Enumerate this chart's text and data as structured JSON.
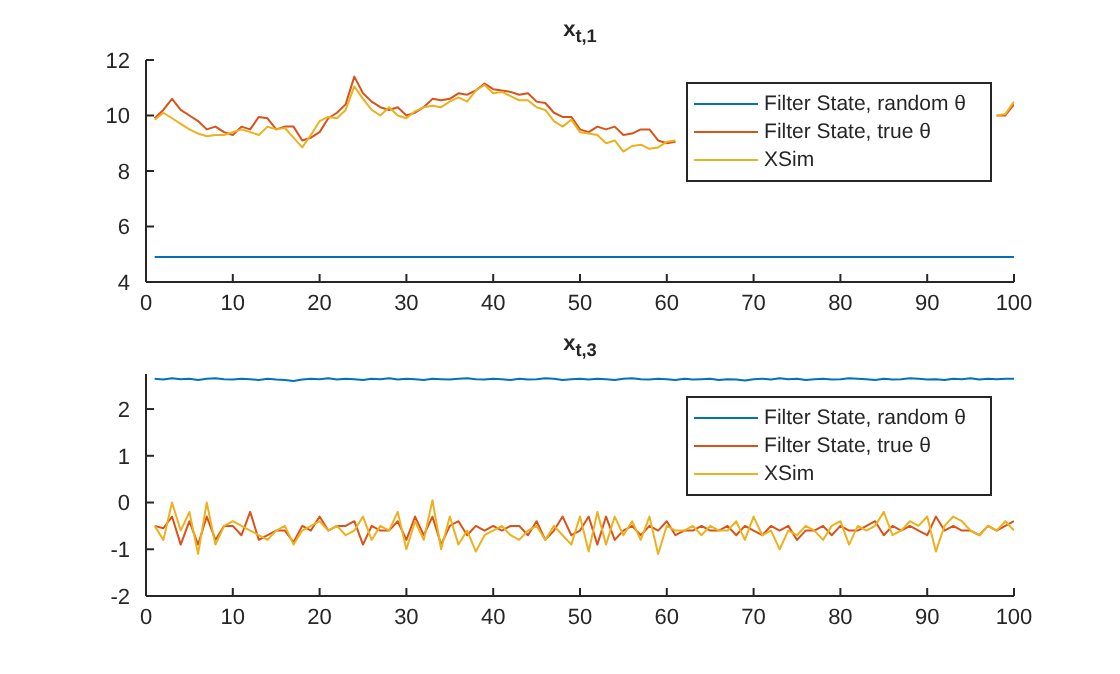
{
  "chart_data": [
    {
      "type": "line",
      "title": "x$_{t,1}$",
      "x": [
        1,
        2,
        3,
        4,
        5,
        6,
        7,
        8,
        9,
        10,
        11,
        12,
        13,
        14,
        15,
        16,
        17,
        18,
        19,
        20,
        21,
        22,
        23,
        24,
        25,
        26,
        27,
        28,
        29,
        30,
        31,
        32,
        33,
        34,
        35,
        36,
        37,
        38,
        39,
        40,
        41,
        42,
        43,
        44,
        45,
        46,
        47,
        48,
        49,
        50,
        51,
        52,
        53,
        54,
        55,
        56,
        57,
        58,
        59,
        60,
        61,
        62,
        63,
        64,
        65,
        66,
        67,
        68,
        69,
        70,
        71,
        72,
        73,
        74,
        75,
        76,
        77,
        78,
        79,
        80,
        81,
        82,
        83,
        84,
        85,
        86,
        87,
        88,
        89,
        90,
        91,
        92,
        93,
        94,
        95,
        96,
        97,
        98,
        99,
        100
      ],
      "xlim": [
        0,
        100
      ],
      "xticks": [
        0,
        10,
        20,
        30,
        40,
        50,
        60,
        70,
        80,
        90,
        100
      ],
      "ylim": [
        4,
        12
      ],
      "yticks": [
        4,
        6,
        8,
        10,
        12
      ],
      "legend": "top right",
      "grid": false,
      "series": [
        {
          "name": "Filter State, random θ",
          "color": "#0072bd",
          "values": [
            4.9,
            4.9,
            4.9,
            4.9,
            4.9,
            4.9,
            4.9,
            4.9,
            4.9,
            4.9,
            4.9,
            4.9,
            4.9,
            4.9,
            4.9,
            4.9,
            4.9,
            4.9,
            4.9,
            4.9,
            4.9,
            4.9,
            4.9,
            4.9,
            4.9,
            4.9,
            4.9,
            4.9,
            4.9,
            4.9,
            4.9,
            4.9,
            4.9,
            4.9,
            4.9,
            4.9,
            4.9,
            4.9,
            4.9,
            4.9,
            4.9,
            4.9,
            4.9,
            4.9,
            4.9,
            4.9,
            4.9,
            4.9,
            4.9,
            4.9,
            4.9,
            4.9,
            4.9,
            4.9,
            4.9,
            4.9,
            4.9,
            4.9,
            4.9,
            4.9,
            4.9,
            4.9,
            4.9,
            4.9,
            4.9,
            4.9,
            4.9,
            4.9,
            4.9,
            4.9,
            4.9,
            4.9,
            4.9,
            4.9,
            4.9,
            4.9,
            4.9,
            4.9,
            4.9,
            4.9,
            4.9,
            4.9,
            4.9,
            4.9,
            4.9,
            4.9,
            4.9,
            4.9,
            4.9,
            4.9,
            4.9,
            4.9,
            4.9,
            4.9,
            4.9,
            4.9,
            4.9,
            4.9,
            4.9,
            4.9
          ]
        },
        {
          "name": "Filter State, true θ",
          "color": "#d95319",
          "values": [
            9.9,
            10.2,
            10.6,
            10.2,
            10.0,
            9.8,
            9.5,
            9.6,
            9.4,
            9.3,
            9.6,
            9.5,
            9.95,
            9.9,
            9.5,
            9.6,
            9.6,
            9.1,
            9.2,
            9.4,
            9.9,
            10.1,
            10.4,
            11.4,
            10.8,
            10.5,
            10.3,
            10.2,
            10.3,
            10.0,
            10.1,
            10.3,
            10.6,
            10.55,
            10.6,
            10.8,
            10.75,
            10.9,
            11.15,
            10.95,
            10.9,
            10.85,
            10.75,
            10.8,
            10.5,
            10.45,
            10.1,
            9.95,
            9.95,
            9.5,
            9.4,
            9.6,
            9.5,
            9.6,
            9.3,
            9.35,
            9.5,
            9.5,
            9.1,
            9.0,
            9.05,
            null,
            null,
            null,
            null,
            null,
            null,
            null,
            null,
            null,
            null,
            null,
            null,
            null,
            null,
            null,
            null,
            null,
            null,
            null,
            null,
            null,
            null,
            null,
            null,
            null,
            null,
            null,
            null,
            null,
            null,
            null,
            null,
            null,
            null,
            null,
            null,
            10.0,
            10.0,
            10.4
          ]
        },
        {
          "name": "XSim",
          "color": "#edb120",
          "values": [
            9.85,
            10.1,
            9.9,
            9.7,
            9.5,
            9.35,
            9.25,
            9.3,
            9.3,
            9.4,
            9.5,
            9.4,
            9.3,
            9.6,
            9.5,
            9.55,
            9.2,
            8.85,
            9.3,
            9.8,
            9.95,
            9.9,
            10.2,
            11.05,
            10.6,
            10.2,
            10.0,
            10.3,
            10.0,
            9.9,
            10.15,
            10.3,
            10.35,
            10.3,
            10.5,
            10.65,
            10.5,
            10.9,
            11.1,
            10.8,
            10.85,
            10.7,
            10.55,
            10.55,
            10.3,
            10.2,
            9.8,
            9.6,
            9.85,
            9.4,
            9.35,
            9.3,
            9.0,
            9.1,
            8.7,
            8.9,
            8.95,
            8.8,
            8.85,
            9.05,
            9.1,
            null,
            null,
            null,
            null,
            null,
            null,
            null,
            null,
            null,
            null,
            null,
            null,
            null,
            null,
            null,
            null,
            null,
            null,
            null,
            null,
            null,
            null,
            null,
            null,
            null,
            null,
            null,
            null,
            null,
            null,
            null,
            null,
            null,
            null,
            null,
            null,
            10.0,
            10.05,
            10.5
          ]
        }
      ]
    },
    {
      "type": "line",
      "title": "x$_{t,3}$",
      "x": [
        1,
        2,
        3,
        4,
        5,
        6,
        7,
        8,
        9,
        10,
        11,
        12,
        13,
        14,
        15,
        16,
        17,
        18,
        19,
        20,
        21,
        22,
        23,
        24,
        25,
        26,
        27,
        28,
        29,
        30,
        31,
        32,
        33,
        34,
        35,
        36,
        37,
        38,
        39,
        40,
        41,
        42,
        43,
        44,
        45,
        46,
        47,
        48,
        49,
        50,
        51,
        52,
        53,
        54,
        55,
        56,
        57,
        58,
        59,
        60,
        61,
        62,
        63,
        64,
        65,
        66,
        67,
        68,
        69,
        70,
        71,
        72,
        73,
        74,
        75,
        76,
        77,
        78,
        79,
        80,
        81,
        82,
        83,
        84,
        85,
        86,
        87,
        88,
        89,
        90,
        91,
        92,
        93,
        94,
        95,
        96,
        97,
        98,
        99,
        100
      ],
      "xlim": [
        0,
        100
      ],
      "xticks": [
        0,
        10,
        20,
        30,
        40,
        50,
        60,
        70,
        80,
        90,
        100
      ],
      "ylim": [
        -2,
        2.75
      ],
      "yticks": [
        -2,
        -1,
        0,
        1,
        2
      ],
      "legend": "top right",
      "grid": false,
      "series": [
        {
          "name": "Filter State, random θ",
          "color": "#0072bd",
          "values": [
            2.65,
            2.63,
            2.66,
            2.64,
            2.65,
            2.62,
            2.65,
            2.66,
            2.64,
            2.63,
            2.65,
            2.64,
            2.62,
            2.65,
            2.63,
            2.62,
            2.6,
            2.63,
            2.65,
            2.64,
            2.66,
            2.63,
            2.65,
            2.64,
            2.62,
            2.65,
            2.64,
            2.66,
            2.63,
            2.65,
            2.64,
            2.62,
            2.65,
            2.64,
            2.63,
            2.65,
            2.66,
            2.64,
            2.63,
            2.65,
            2.64,
            2.62,
            2.65,
            2.63,
            2.64,
            2.66,
            2.65,
            2.62,
            2.64,
            2.65,
            2.63,
            2.65,
            2.64,
            2.62,
            2.65,
            2.66,
            2.64,
            2.63,
            2.65,
            2.64,
            2.62,
            2.65,
            2.63,
            2.64,
            2.65,
            2.62,
            2.64,
            2.63,
            2.61,
            2.64,
            2.65,
            2.63,
            2.66,
            2.64,
            2.65,
            2.62,
            2.64,
            2.65,
            2.63,
            2.64,
            2.66,
            2.65,
            2.64,
            2.62,
            2.65,
            2.63,
            2.64,
            2.66,
            2.65,
            2.63,
            2.64,
            2.62,
            2.65,
            2.64,
            2.66,
            2.63,
            2.65,
            2.64,
            2.65,
            2.65
          ]
        },
        {
          "name": "Filter State, true θ",
          "color": "#d95319",
          "values": [
            -0.5,
            -0.55,
            -0.3,
            -0.9,
            -0.4,
            -0.9,
            -0.3,
            -0.8,
            -0.5,
            -0.5,
            -0.7,
            -0.2,
            -0.8,
            -0.7,
            -0.6,
            -0.6,
            -0.85,
            -0.5,
            -0.6,
            -0.3,
            -0.6,
            -0.5,
            -0.5,
            -0.4,
            -0.9,
            -0.5,
            -0.6,
            -0.6,
            -0.4,
            -0.8,
            -0.3,
            -0.7,
            -0.3,
            -0.9,
            -0.5,
            -0.4,
            -0.7,
            -0.5,
            -0.6,
            -0.5,
            -0.6,
            -0.5,
            -0.5,
            -0.7,
            -0.4,
            -0.8,
            -0.6,
            -0.3,
            -0.7,
            -0.6,
            -0.3,
            -0.9,
            -0.3,
            -0.8,
            -0.6,
            -0.5,
            -0.7,
            -0.5,
            -0.6,
            -0.4,
            -0.7,
            -0.6,
            -0.6,
            -0.5,
            -0.6,
            -0.6,
            -0.5,
            -0.7,
            -0.5,
            -0.6,
            -0.7,
            -0.5,
            -0.6,
            -0.5,
            -0.8,
            -0.6,
            -0.6,
            -0.5,
            -0.7,
            -0.5,
            -0.6,
            -0.6,
            -0.5,
            -0.4,
            -0.7,
            -0.5,
            -0.6,
            -0.5,
            -0.6,
            -0.7,
            -0.3,
            -0.6,
            -0.5,
            -0.6,
            -0.6,
            -0.7,
            -0.5,
            -0.6,
            -0.5,
            -0.4
          ]
        },
        {
          "name": "XSim",
          "color": "#edb120",
          "values": [
            -0.5,
            -0.8,
            0.0,
            -0.6,
            -0.2,
            -1.1,
            0.0,
            -0.9,
            -0.5,
            -0.4,
            -0.5,
            -0.6,
            -0.7,
            -0.8,
            -0.6,
            -0.5,
            -0.9,
            -0.6,
            -0.5,
            -0.4,
            -0.6,
            -0.5,
            -0.7,
            -0.6,
            -0.3,
            -0.8,
            -0.5,
            -0.6,
            -0.2,
            -1.0,
            -0.4,
            -0.8,
            0.05,
            -1.0,
            -0.3,
            -0.9,
            -0.6,
            -1.05,
            -0.7,
            -0.6,
            -0.5,
            -0.7,
            -0.8,
            -0.6,
            -0.5,
            -0.8,
            -0.5,
            -0.7,
            -0.9,
            -0.3,
            -1.05,
            -0.2,
            -0.9,
            -0.3,
            -0.7,
            -0.4,
            -0.8,
            -0.3,
            -1.1,
            -0.5,
            -0.6,
            -0.6,
            -0.5,
            -0.7,
            -0.5,
            -0.6,
            -0.6,
            -0.4,
            -0.8,
            -0.3,
            -0.7,
            -0.6,
            -1.0,
            -0.6,
            -0.7,
            -0.5,
            -0.6,
            -0.8,
            -0.5,
            -0.4,
            -0.9,
            -0.5,
            -0.6,
            -0.5,
            -0.2,
            -0.7,
            -0.6,
            -0.4,
            -0.5,
            -0.3,
            -1.05,
            -0.5,
            -0.3,
            -0.4,
            -0.6,
            -0.7,
            -0.5,
            -0.6,
            -0.4,
            -0.6
          ]
        }
      ]
    }
  ]
}
